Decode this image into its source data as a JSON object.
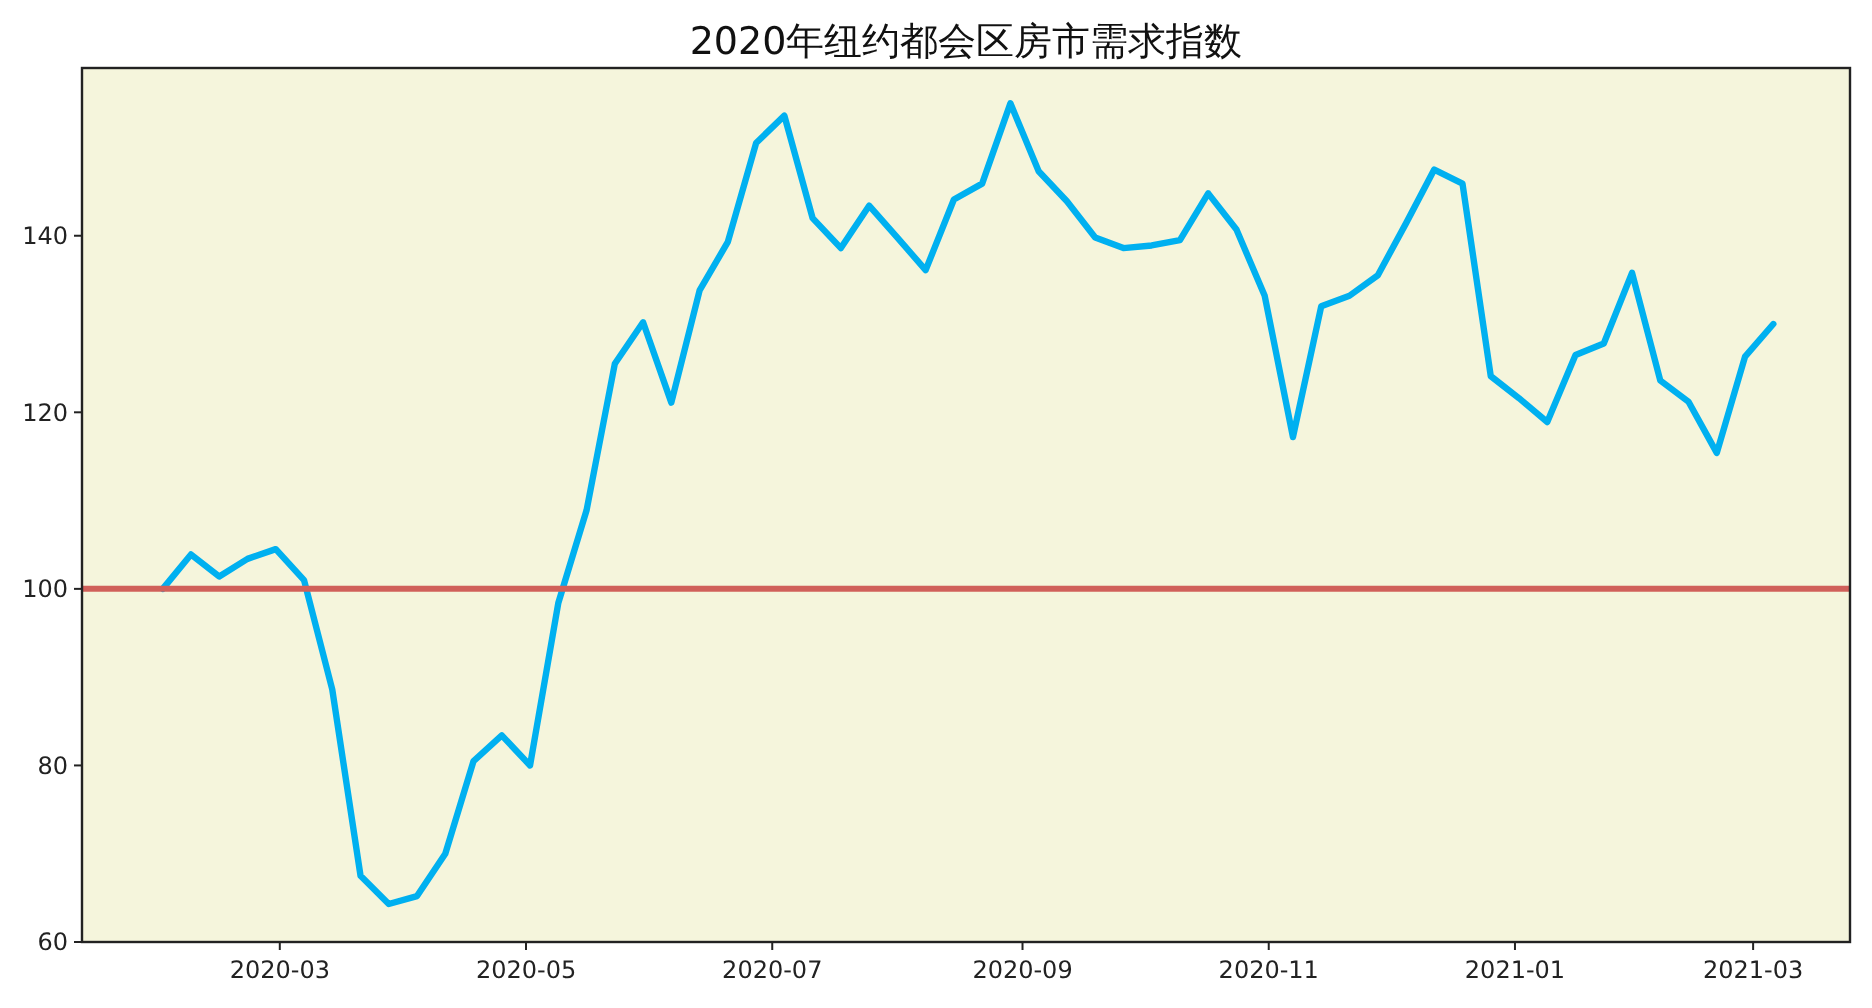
{
  "chart_data": {
    "type": "line",
    "title": "2020年纽约都会区房市需求指数",
    "x": [
      "2020-02-01",
      "2020-02-08",
      "2020-02-15",
      "2020-02-22",
      "2020-02-29",
      "2020-03-07",
      "2020-03-14",
      "2020-03-21",
      "2020-03-28",
      "2020-04-04",
      "2020-04-11",
      "2020-04-18",
      "2020-04-25",
      "2020-05-02",
      "2020-05-09",
      "2020-05-16",
      "2020-05-23",
      "2020-05-30",
      "2020-06-06",
      "2020-06-13",
      "2020-06-20",
      "2020-06-27",
      "2020-07-04",
      "2020-07-11",
      "2020-07-18",
      "2020-07-25",
      "2020-08-01",
      "2020-08-08",
      "2020-08-15",
      "2020-08-22",
      "2020-08-29",
      "2020-09-05",
      "2020-09-12",
      "2020-09-19",
      "2020-09-26",
      "2020-10-03",
      "2020-10-10",
      "2020-10-17",
      "2020-10-24",
      "2020-10-31",
      "2020-11-07",
      "2020-11-14",
      "2020-11-21",
      "2020-11-28",
      "2020-12-05",
      "2020-12-12",
      "2020-12-19",
      "2020-12-26",
      "2021-01-02",
      "2021-01-09",
      "2021-01-16",
      "2021-01-23",
      "2021-01-30",
      "2021-02-06",
      "2021-02-13",
      "2021-02-20",
      "2021-02-27",
      "2021-03-06"
    ],
    "series": [
      {
        "color": "#00b0f0",
        "values": [
          100,
          103.9,
          101.4,
          103.4,
          104.5,
          101,
          88.6,
          67.5,
          64.3,
          65.2,
          70,
          80.5,
          83.4,
          80,
          98.4,
          108.9,
          125.5,
          130.2,
          121.1,
          133.8,
          139.3,
          150.5,
          153.6,
          142,
          138.6,
          143.4,
          139.8,
          136.1,
          144.1,
          145.9,
          155,
          147.3,
          143.9,
          139.8,
          138.6,
          138.9,
          139.5,
          144.8,
          140.7,
          133.2,
          117.2,
          132,
          133.2,
          135.5,
          141.4,
          147.5,
          145.9,
          124.1,
          121.6,
          118.9,
          126.5,
          127.8,
          135.8,
          123.6,
          121.2,
          115.4,
          126.3,
          130
        ]
      }
    ],
    "xlim": [
      "2020-01-12",
      "2021-03-25"
    ],
    "xticks": [
      {
        "value": "2020-03",
        "label": "2020-03"
      },
      {
        "value": "2020-05",
        "label": "2020-05"
      },
      {
        "value": "2020-07",
        "label": "2020-07"
      },
      {
        "value": "2020-09",
        "label": "2020-09"
      },
      {
        "value": "2020-11",
        "label": "2020-11"
      },
      {
        "value": "2021-01",
        "label": "2021-01"
      },
      {
        "value": "2021-03",
        "label": "2021-03"
      }
    ],
    "ylim": [
      60,
      159
    ],
    "yticks": [
      60,
      80,
      100,
      120,
      140
    ],
    "ref_lines": [
      {
        "axis": "y",
        "value": 100,
        "color": "#d0605a"
      }
    ],
    "grid": false,
    "marker": "none",
    "line_style": "solid"
  }
}
